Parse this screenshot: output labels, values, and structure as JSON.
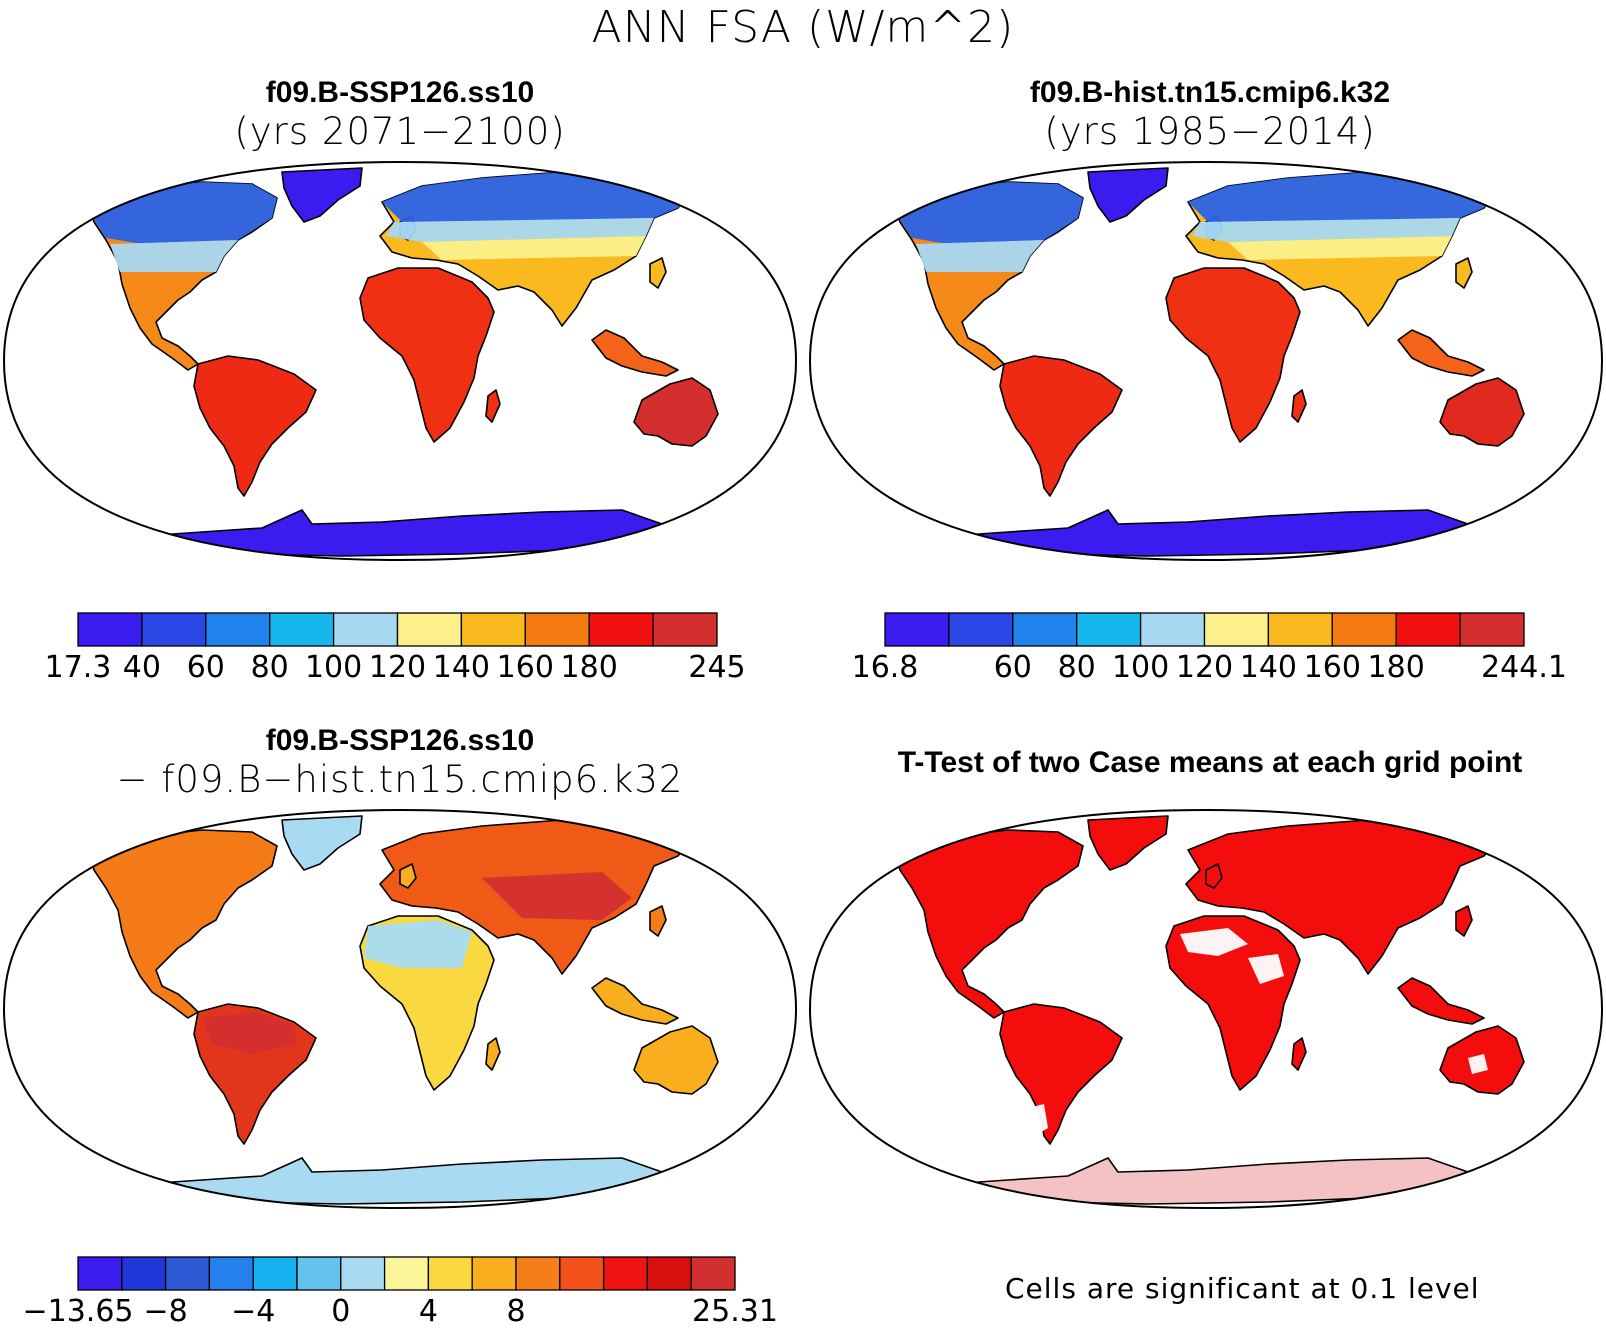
{
  "title": "ANN FSA (W/m^2)",
  "panels": [
    {
      "id": "case1",
      "title_line1": "f09.B-SSP126.ss10",
      "title_line2": "(yrs 2071−2100)",
      "colorbar": {
        "colors": [
          "#3a1cf0",
          "#2b47e6",
          "#2083ee",
          "#17b6ee",
          "#a6d8f2",
          "#fbf08a",
          "#f9b91f",
          "#f47a12",
          "#f20f0f",
          "#d32f2f"
        ],
        "labels": [
          "17.3",
          "40",
          "60",
          "80",
          "100",
          "120",
          "140",
          "160",
          "180",
          "245"
        ]
      }
    },
    {
      "id": "case2",
      "title_line1": "f09.B-hist.tn15.cmip6.k32",
      "title_line2": "(yrs 1985−2014)",
      "colorbar": {
        "colors": [
          "#3a1cf0",
          "#2b47e6",
          "#2083ee",
          "#17b6ee",
          "#a6d8f2",
          "#fbf08a",
          "#f9b91f",
          "#f47a12",
          "#f20f0f",
          "#d32f2f"
        ],
        "labels": [
          "16.8",
          "",
          "60",
          "80",
          "100",
          "120",
          "140",
          "160",
          "180",
          "244.1"
        ]
      }
    },
    {
      "id": "difference",
      "title_line1": "f09.B-SSP126.ss10",
      "title_line2": "− f09.B−hist.tn15.cmip6.k32",
      "colorbar": {
        "colors": [
          "#3a1cf0",
          "#2038d8",
          "#2f5ad6",
          "#2480ec",
          "#15b0ef",
          "#63c3ee",
          "#a8dbf2",
          "#fbf59a",
          "#f9d840",
          "#f9ae1f",
          "#f57e18",
          "#f4521a",
          "#ef1313",
          "#d80f0f",
          "#d23030"
        ],
        "labels": [
          "−13.65",
          "",
          "−8",
          "",
          "−4",
          "",
          "0",
          "",
          "4",
          "",
          "8",
          "",
          "",
          "",
          "25.31"
        ]
      }
    },
    {
      "id": "ttest",
      "title_line1": "T-Test of two Case means at each grid point",
      "note": "Cells are significant at 0.1 level",
      "significant_color": "#f40d0d"
    }
  ]
}
